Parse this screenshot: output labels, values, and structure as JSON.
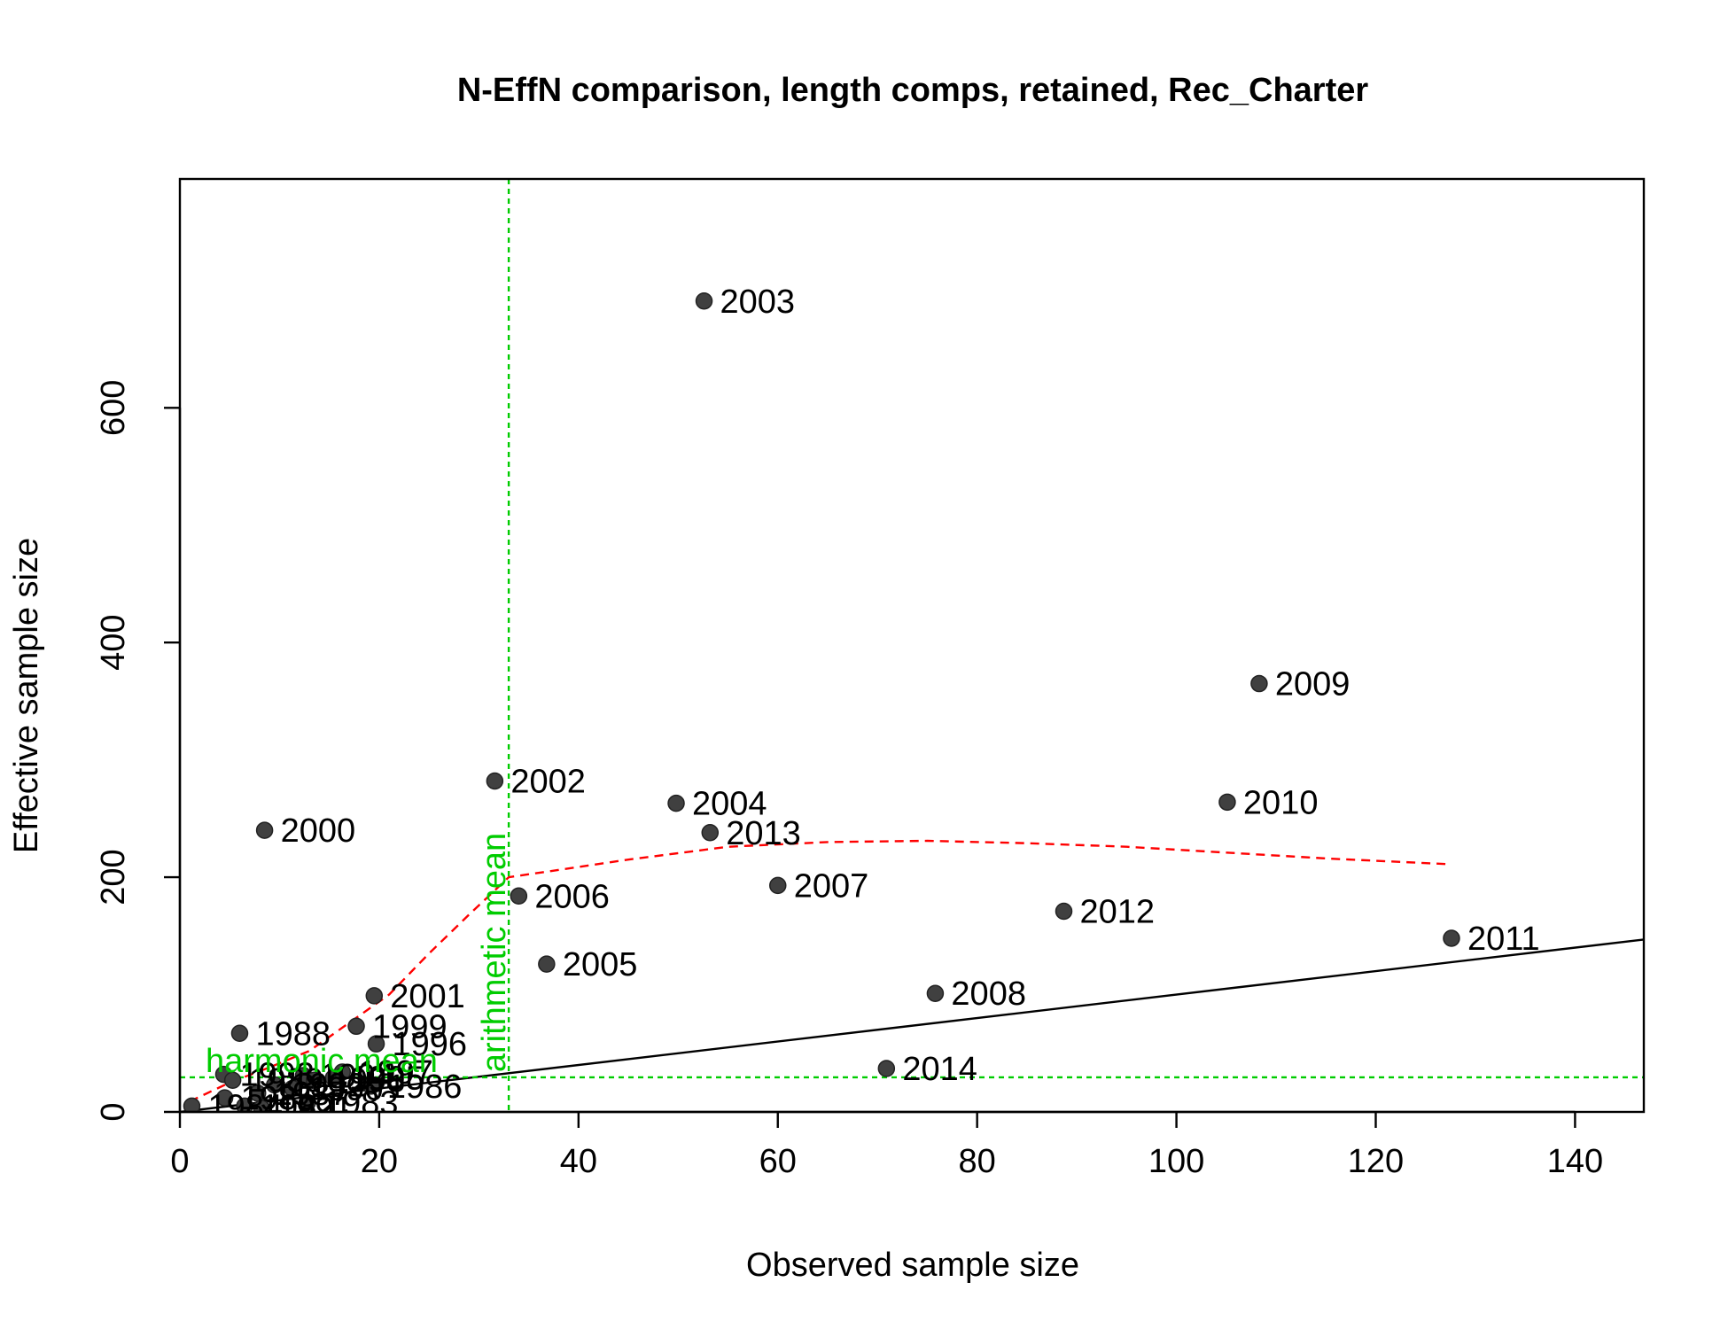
{
  "chart_data": {
    "type": "scatter",
    "title": "N-EffN comparison, length comps, retained, Rec_Charter",
    "xlabel": "Observed sample size",
    "ylabel": "Effective sample size",
    "xlim": [
      0,
      146.9
    ],
    "ylim": [
      0,
      795
    ],
    "x_ticks": [
      0,
      20,
      40,
      60,
      80,
      100,
      120,
      140
    ],
    "y_ticks": [
      0,
      200,
      400,
      600
    ],
    "points": [
      {
        "label": "2003",
        "x": 52.6,
        "y": 691
      },
      {
        "label": "2009",
        "x": 108.3,
        "y": 365
      },
      {
        "label": "2002",
        "x": 31.6,
        "y": 282
      },
      {
        "label": "2010",
        "x": 105.1,
        "y": 264
      },
      {
        "label": "2004",
        "x": 49.8,
        "y": 263
      },
      {
        "label": "2000",
        "x": 8.5,
        "y": 240
      },
      {
        "label": "2013",
        "x": 53.2,
        "y": 238
      },
      {
        "label": "2007",
        "x": 60.0,
        "y": 193
      },
      {
        "label": "2006",
        "x": 34.0,
        "y": 184
      },
      {
        "label": "2012",
        "x": 88.7,
        "y": 171
      },
      {
        "label": "2011",
        "x": 127.6,
        "y": 148
      },
      {
        "label": "2005",
        "x": 36.8,
        "y": 126
      },
      {
        "label": "2008",
        "x": 75.8,
        "y": 101
      },
      {
        "label": "2001",
        "x": 19.5,
        "y": 99
      },
      {
        "label": "1999",
        "x": 17.7,
        "y": 73
      },
      {
        "label": "1988",
        "x": 6.0,
        "y": 67
      },
      {
        "label": "1996",
        "x": 19.7,
        "y": 58
      },
      {
        "label": "2014",
        "x": 70.9,
        "y": 37
      },
      {
        "label": "1986",
        "x": 19.2,
        "y": 22
      },
      {
        "label": "1993",
        "x": 4.4,
        "y": 32
      },
      {
        "label": "1994",
        "x": 12.4,
        "y": 31
      },
      {
        "label": "1995",
        "x": 15.4,
        "y": 29
      },
      {
        "label": "1997",
        "x": 16.3,
        "y": 34
      },
      {
        "label": "1989",
        "x": 5.3,
        "y": 27
      },
      {
        "label": "1998",
        "x": 13.5,
        "y": 27
      },
      {
        "label": "1992",
        "x": 9.5,
        "y": 23
      },
      {
        "label": "1990",
        "x": 11.3,
        "y": 20
      },
      {
        "label": "1987",
        "x": 7.8,
        "y": 16
      },
      {
        "label": "1985",
        "x": 4.5,
        "y": 12
      },
      {
        "label": "1983",
        "x": 12.8,
        "y": 8
      },
      {
        "label": "1982",
        "x": 6.5,
        "y": 5
      },
      {
        "label": "1991",
        "x": 8.2,
        "y": 3
      },
      {
        "label": "1984",
        "x": 1.2,
        "y": 5
      }
    ],
    "smoother": {
      "x": [
        1,
        5,
        9,
        13,
        18,
        21,
        25,
        29,
        33,
        37,
        45,
        55,
        65,
        75,
        85,
        95,
        105,
        115,
        127.6
      ],
      "y": [
        9,
        25,
        38,
        52,
        82,
        100,
        135,
        168,
        200,
        205,
        215,
        226,
        230,
        231,
        229,
        226,
        221,
        216,
        211
      ],
      "color": "#ff0000"
    },
    "identity_line": {
      "color": "#000000"
    },
    "arithmetic_mean": {
      "value": 33.0,
      "label": "arithmetic mean",
      "color": "#00cc00"
    },
    "harmonic_mean": {
      "value": 29.5,
      "label": "harmonic mean",
      "color": "#00cc00"
    },
    "point_color": "#404040",
    "grid": false,
    "legend": "none"
  }
}
